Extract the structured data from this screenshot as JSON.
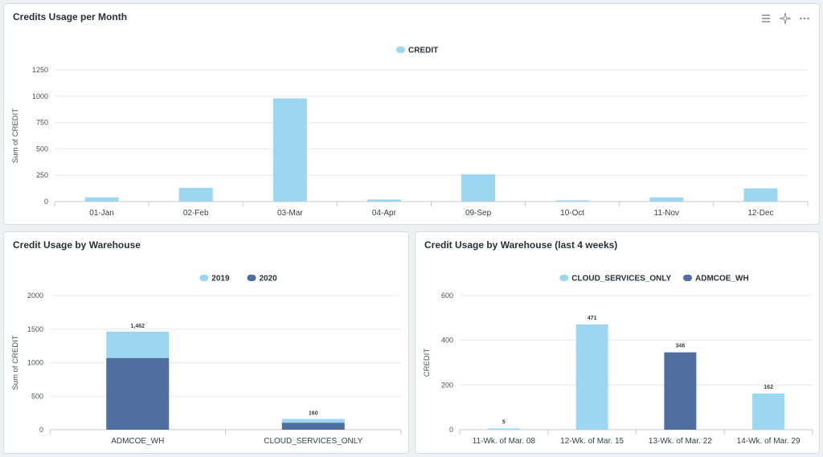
{
  "colors": {
    "light": "#9dd6f1",
    "dark": "#4f6fa0",
    "grid": "#e6e8eb",
    "axis": "#c5c9cf"
  },
  "panel1": {
    "title": "Credits Usage per Month",
    "toolbar": [
      "menu-icon",
      "sparkle-icon",
      "more-icon"
    ]
  },
  "panel2": {
    "title": "Credit Usage by Warehouse"
  },
  "panel3": {
    "title": "Credit Usage by Warehouse (last 4 weeks)"
  },
  "chart_data": [
    {
      "type": "bar",
      "title": "Credits Usage per Month",
      "xlabel": "",
      "ylabel": "Sum of CREDIT",
      "ylim": [
        0,
        1250
      ],
      "yticks": [
        0,
        250,
        500,
        750,
        1000,
        1250
      ],
      "grid": true,
      "legend": "top-center",
      "categories": [
        "01-Jan",
        "02-Feb",
        "03-Mar",
        "04-Apr",
        "09-Sep",
        "10-Oct",
        "11-Nov",
        "12-Dec"
      ],
      "series": [
        {
          "name": "CREDIT",
          "color": "#9dd6f1",
          "values": [
            40,
            130,
            980,
            20,
            260,
            5,
            40,
            125
          ]
        }
      ]
    },
    {
      "type": "bar",
      "stacked": true,
      "title": "Credit Usage by Warehouse",
      "xlabel": "",
      "ylabel": "Sum of CREDIT",
      "ylim": [
        0,
        2000
      ],
      "yticks": [
        0,
        500,
        1000,
        1500,
        2000
      ],
      "grid": true,
      "legend": "top-center",
      "categories": [
        "ADMCOE_WH",
        "CLOUD_SERVICES_ONLY"
      ],
      "series": [
        {
          "name": "2019",
          "color": "#9dd6f1",
          "values": [
            392,
            55
          ]
        },
        {
          "name": "2020",
          "color": "#4f6fa0",
          "values": [
            1070,
            105
          ]
        }
      ],
      "totals": [
        "1,462",
        "160"
      ]
    },
    {
      "type": "bar",
      "title": "Credit Usage by Warehouse (last 4 weeks)",
      "xlabel": "",
      "ylabel": "CREDIT",
      "ylim": [
        0,
        600
      ],
      "yticks": [
        0,
        200,
        400,
        600
      ],
      "grid": true,
      "legend": "top-center",
      "categories": [
        "11-Wk. of Mar. 08",
        "12-Wk. of Mar. 15",
        "13-Wk. of Mar. 22",
        "14-Wk. of Mar. 29"
      ],
      "series": [
        {
          "name": "CLOUD_SERVICES_ONLY",
          "color": "#9dd6f1",
          "values": [
            5,
            471,
            null,
            162
          ]
        },
        {
          "name": "ADMCOE_WH",
          "color": "#4f6fa0",
          "values": [
            null,
            null,
            346,
            null
          ]
        }
      ],
      "labels": [
        "5",
        "471",
        "346",
        "162"
      ]
    }
  ]
}
